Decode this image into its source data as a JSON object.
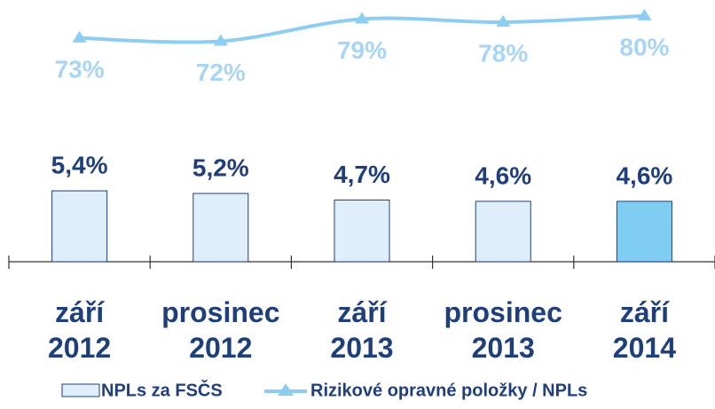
{
  "chart_data": {
    "type": "bar_line",
    "categories": [
      "září\n2012",
      "prosinec\n2012",
      "září\n2013",
      "prosinec\n2013",
      "září\n2014"
    ],
    "series": [
      {
        "name": "NPLs za FSČS",
        "type": "bar",
        "colors": [
          "#deeffb",
          "#deeffb",
          "#deeffb",
          "#deeffb",
          "#7fcdf3"
        ],
        "edge_color": "#1f3f7a",
        "values": [
          5.4,
          5.2,
          4.7,
          4.6,
          4.6
        ],
        "value_labels": [
          "5,4%",
          "5,2%",
          "4,7%",
          "4,6%",
          "4,6%"
        ]
      },
      {
        "name": "Rizikové opravné položky / NPLs",
        "type": "line",
        "axis": "y2",
        "color": "#8dcdf2",
        "label_color": "#a9d5f5",
        "values": [
          73,
          72,
          79,
          78,
          80
        ],
        "value_labels": [
          "73%",
          "72%",
          "79%",
          "78%",
          "80%"
        ]
      }
    ],
    "ylim": [
      0,
      10
    ],
    "y2lim": [
      60,
      85
    ]
  }
}
